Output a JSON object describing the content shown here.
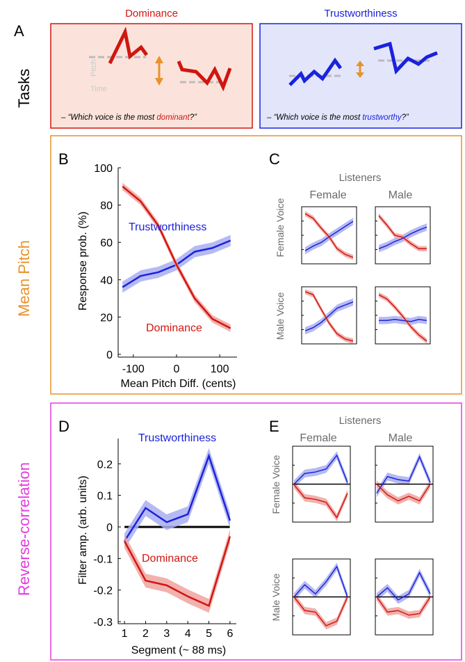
{
  "colors": {
    "dominance": "#d0160f",
    "trust": "#1a22dd",
    "panel_a_dom_bg": "#fbe3dc",
    "panel_a_trust_bg": "#e3e6fb",
    "orange": "#e8922a",
    "magenta": "#e43de0",
    "gray": "#6b6b6b",
    "band_dom": "#f0a3a0",
    "band_trust": "#a9aef0"
  },
  "row_labels": {
    "tasks": "Tasks",
    "mean_pitch": "Mean Pitch",
    "reverse_corr": "Reverse-correlation"
  },
  "panel_letters": {
    "a": "A",
    "b": "B",
    "c": "C",
    "d": "D",
    "e": "E"
  },
  "panel_a": {
    "dominance_title": "Dominance",
    "trust_title": "Trustworthiness",
    "pitch_label": "Pitch",
    "time_label": "Time",
    "dom_question_pre": "– “Which voice is the most ",
    "dom_question_key": "dominant",
    "dom_question_post": "?”",
    "trust_question_pre": "– “Which voice is the most ",
    "trust_question_key": "trustworthy",
    "trust_question_post": "?”"
  },
  "chart_data": [
    {
      "id": "B",
      "type": "line",
      "xlabel": "Mean Pitch Diff. (cents)",
      "ylabel": "Response prob. (%)",
      "xlim": [
        -135,
        140
      ],
      "ylim": [
        0,
        100
      ],
      "xticks": [
        "-100",
        "0",
        "100"
      ],
      "xtick_values": [
        -100,
        0,
        100
      ],
      "yticks": [
        "0",
        "20",
        "40",
        "60",
        "80",
        "100"
      ],
      "ytick_values": [
        0,
        20,
        40,
        60,
        80,
        100
      ],
      "x": [
        -125,
        -83,
        -42,
        0,
        42,
        83,
        125
      ],
      "series": [
        {
          "name": "Trustworthiness",
          "values": [
            36,
            42,
            44,
            48,
            55,
            57,
            61
          ],
          "band": 3
        },
        {
          "name": "Dominance",
          "values": [
            90,
            82,
            69,
            48,
            30,
            19,
            14
          ],
          "band": 2
        }
      ]
    },
    {
      "id": "C",
      "type": "line",
      "title": "Listeners",
      "col_labels": [
        "Female",
        "Male"
      ],
      "row_labels": [
        "Female Voice",
        "Male Voice"
      ],
      "panels": [
        {
          "dominance": [
            92,
            83,
            64,
            47,
            24,
            13,
            7
          ],
          "trust": [
            20,
            29,
            36,
            47,
            57,
            67,
            77
          ]
        },
        {
          "dominance": [
            88,
            70,
            50,
            46,
            34,
            24,
            24
          ],
          "trust": [
            24,
            30,
            38,
            44,
            53,
            60,
            66
          ]
        },
        {
          "dominance": [
            96,
            90,
            62,
            35,
            14,
            4,
            0
          ],
          "trust": [
            20,
            26,
            36,
            50,
            64,
            70,
            76
          ]
        },
        {
          "dominance": [
            90,
            82,
            66,
            48,
            28,
            12,
            0
          ],
          "trust": [
            40,
            40,
            42,
            40,
            38,
            42,
            40
          ]
        }
      ]
    },
    {
      "id": "D",
      "type": "line",
      "xlabel": "Segment (~ 88 ms)",
      "ylabel": "Filter amp. (arb. units)",
      "xlim": [
        0.7,
        6.3
      ],
      "ylim": [
        -0.3,
        0.28
      ],
      "xticks": [
        "1",
        "2",
        "3",
        "4",
        "5",
        "6"
      ],
      "xtick_values": [
        1,
        2,
        3,
        4,
        5,
        6
      ],
      "yticks": [
        "0.2",
        "0.1",
        "0",
        "-0.1",
        "-0.2",
        "-0.3"
      ],
      "ytick_values": [
        0.2,
        0.1,
        0,
        -0.1,
        -0.2,
        -0.3
      ],
      "x": [
        1,
        2,
        3,
        4,
        5,
        6
      ],
      "series": [
        {
          "name": "Trustworthiness",
          "values": [
            -0.045,
            0.06,
            0.015,
            0.04,
            0.225,
            0.02
          ],
          "band": 0.025
        },
        {
          "name": "Dominance",
          "values": [
            -0.045,
            -0.17,
            -0.185,
            -0.22,
            -0.25,
            -0.03
          ],
          "band": 0.022
        }
      ]
    },
    {
      "id": "E",
      "type": "line",
      "title": "Listeners",
      "col_labels": [
        "Female",
        "Male"
      ],
      "row_labels": [
        "Female Voice",
        "Male Voice"
      ],
      "panels": [
        {
          "trust": [
            0,
            0.35,
            0.4,
            0.5,
            0.95,
            0.05
          ],
          "dominance": [
            -0.02,
            -0.45,
            -0.5,
            -0.6,
            -1.1,
            -0.3
          ]
        },
        {
          "trust": [
            -0.3,
            0.25,
            0.15,
            0.1,
            0.9,
            0.05
          ],
          "dominance": [
            0,
            -0.35,
            -0.55,
            -0.4,
            -0.55,
            0.0
          ]
        },
        {
          "trust": [
            0,
            0.4,
            0.1,
            0.5,
            1.0,
            0.0
          ],
          "dominance": [
            0,
            -0.45,
            -0.5,
            -0.95,
            -0.8,
            0.0
          ]
        },
        {
          "trust": [
            0,
            0.3,
            -0.1,
            0.1,
            0.8,
            0.1
          ],
          "dominance": [
            0,
            -0.5,
            -0.45,
            -0.6,
            -0.55,
            0.0
          ]
        }
      ]
    }
  ]
}
